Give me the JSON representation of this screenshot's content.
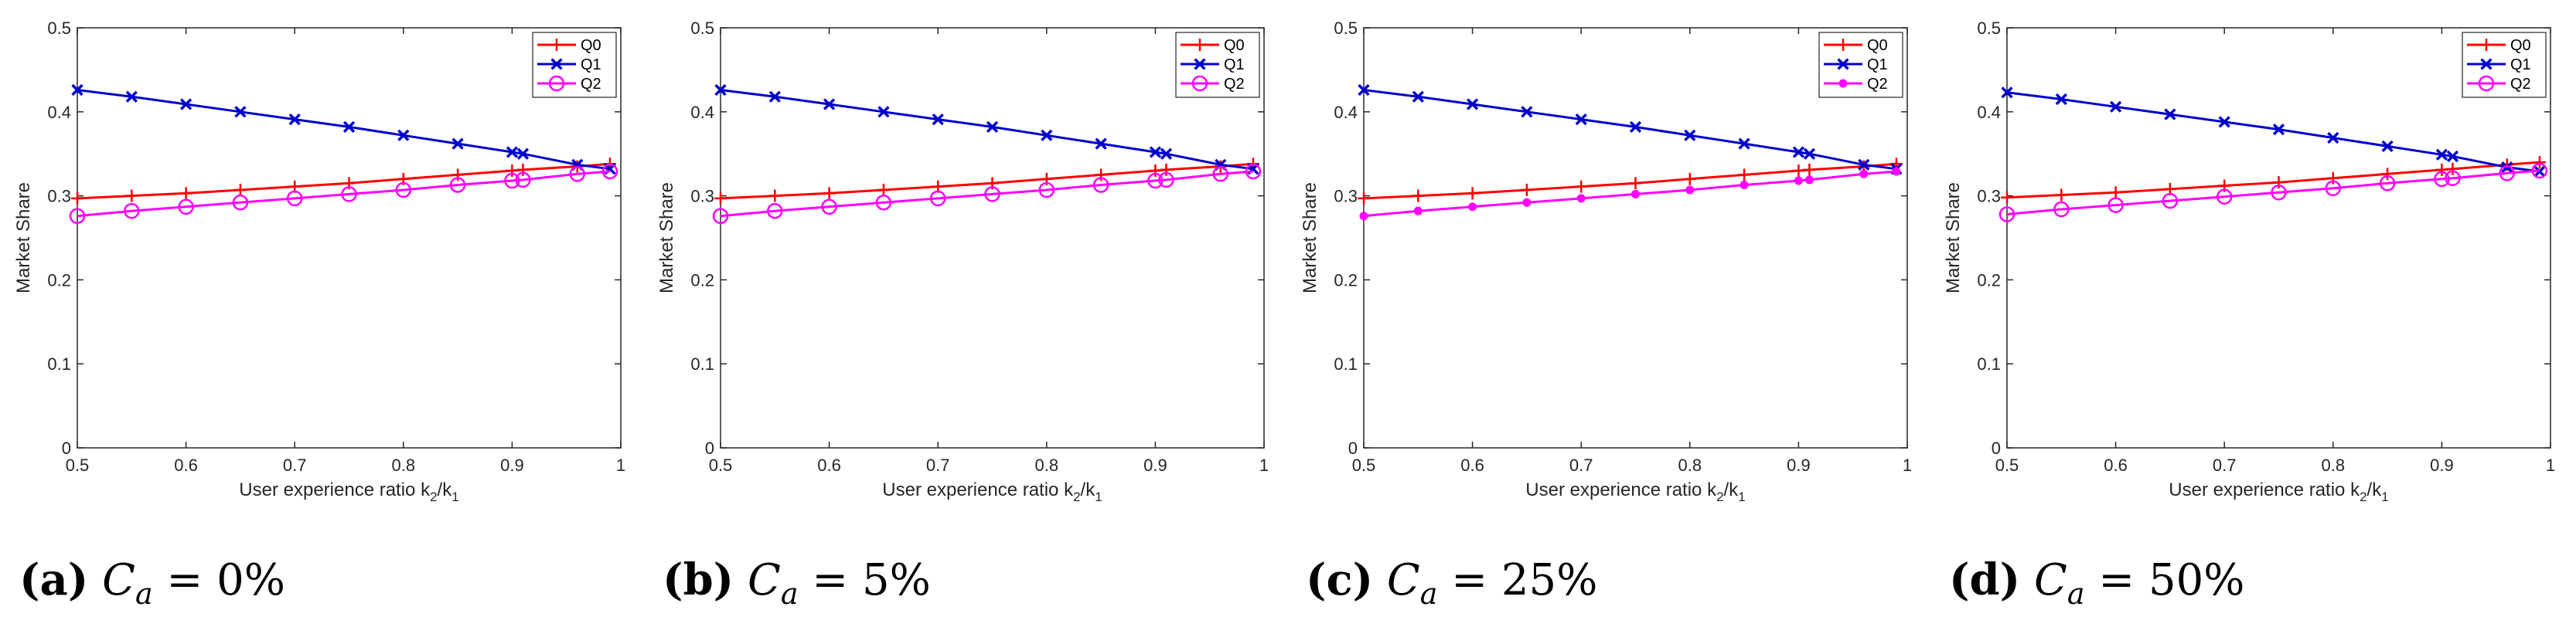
{
  "chart_data": [
    {
      "type": "line",
      "panel": "(a)",
      "caption": {
        "label": "(a)",
        "math": "C_a = 0%"
      },
      "xlabel": "User experience ratio k2/k1",
      "ylabel": "Market Share",
      "xlim": [
        0.5,
        1
      ],
      "ylim": [
        0,
        0.5
      ],
      "xticks": [
        "0.5",
        "0.6",
        "0.7",
        "0.8",
        "0.9",
        "1"
      ],
      "yticks": [
        "0",
        "0.1",
        "0.2",
        "0.3",
        "0.4",
        "0.5"
      ],
      "legend_position": "top-right",
      "x": [
        0.5,
        0.55,
        0.6,
        0.65,
        0.7,
        0.75,
        0.8,
        0.85,
        0.9,
        0.91,
        0.96,
        0.99
      ],
      "series": [
        {
          "name": "Q0",
          "color": "#ff0000",
          "marker": "plus",
          "values": [
            0.297,
            0.3,
            0.303,
            0.307,
            0.311,
            0.315,
            0.32,
            0.325,
            0.33,
            0.331,
            0.335,
            0.338
          ]
        },
        {
          "name": "Q1",
          "color": "#0000cc",
          "marker": "x",
          "values": [
            0.426,
            0.418,
            0.409,
            0.4,
            0.391,
            0.382,
            0.372,
            0.362,
            0.352,
            0.35,
            0.337,
            0.332
          ]
        },
        {
          "name": "Q2",
          "color": "#ff00ff",
          "marker": "circle",
          "values": [
            0.276,
            0.282,
            0.287,
            0.292,
            0.297,
            0.302,
            0.307,
            0.313,
            0.318,
            0.319,
            0.326,
            0.329
          ]
        }
      ]
    },
    {
      "type": "line",
      "panel": "(b)",
      "caption": {
        "label": "(b)",
        "math": "C_a = 5%"
      },
      "xlabel": "User experience ratio k2/k1",
      "ylabel": "Market Share",
      "xlim": [
        0.5,
        1
      ],
      "ylim": [
        0,
        0.5
      ],
      "xticks": [
        "0.5",
        "0.6",
        "0.7",
        "0.8",
        "0.9",
        "1"
      ],
      "yticks": [
        "0",
        "0.1",
        "0.2",
        "0.3",
        "0.4",
        "0.5"
      ],
      "legend_position": "top-right",
      "x": [
        0.5,
        0.55,
        0.6,
        0.65,
        0.7,
        0.75,
        0.8,
        0.85,
        0.9,
        0.91,
        0.96,
        0.99
      ],
      "series": [
        {
          "name": "Q0",
          "color": "#ff0000",
          "marker": "plus",
          "values": [
            0.297,
            0.3,
            0.303,
            0.307,
            0.311,
            0.315,
            0.32,
            0.325,
            0.33,
            0.331,
            0.335,
            0.338
          ]
        },
        {
          "name": "Q1",
          "color": "#0000cc",
          "marker": "x",
          "values": [
            0.426,
            0.418,
            0.409,
            0.4,
            0.391,
            0.382,
            0.372,
            0.362,
            0.352,
            0.35,
            0.337,
            0.332
          ]
        },
        {
          "name": "Q2",
          "color": "#ff00ff",
          "marker": "circle",
          "values": [
            0.276,
            0.282,
            0.287,
            0.292,
            0.297,
            0.302,
            0.307,
            0.313,
            0.318,
            0.319,
            0.326,
            0.329
          ]
        }
      ]
    },
    {
      "type": "line",
      "panel": "(c)",
      "caption": {
        "label": "(c)",
        "math": "C_a = 25%"
      },
      "xlabel": "User experience ratio k2/k1",
      "ylabel": "Market Share",
      "xlim": [
        0.5,
        1
      ],
      "ylim": [
        0,
        0.5
      ],
      "xticks": [
        "0.5",
        "0.6",
        "0.7",
        "0.8",
        "0.9",
        "1"
      ],
      "yticks": [
        "0",
        "0.1",
        "0.2",
        "0.3",
        "0.4",
        "0.5"
      ],
      "legend_position": "top-right",
      "x": [
        0.5,
        0.55,
        0.6,
        0.65,
        0.7,
        0.75,
        0.8,
        0.85,
        0.9,
        0.91,
        0.96,
        0.99
      ],
      "series": [
        {
          "name": "Q0",
          "color": "#ff0000",
          "marker": "plus",
          "values": [
            0.297,
            0.3,
            0.303,
            0.307,
            0.311,
            0.315,
            0.32,
            0.325,
            0.33,
            0.331,
            0.335,
            0.338
          ]
        },
        {
          "name": "Q1",
          "color": "#0000cc",
          "marker": "x",
          "values": [
            0.426,
            0.418,
            0.409,
            0.4,
            0.391,
            0.382,
            0.372,
            0.362,
            0.352,
            0.35,
            0.337,
            0.332
          ]
        },
        {
          "name": "Q2",
          "color": "#ff00ff",
          "marker": "dot",
          "values": [
            0.276,
            0.282,
            0.287,
            0.292,
            0.297,
            0.302,
            0.307,
            0.313,
            0.318,
            0.319,
            0.326,
            0.329
          ]
        }
      ]
    },
    {
      "type": "line",
      "panel": "(d)",
      "caption": {
        "label": "(d)",
        "math": "C_a = 50%"
      },
      "xlabel": "User experience ratio k2/k1",
      "ylabel": "Market Share",
      "xlim": [
        0.5,
        1
      ],
      "ylim": [
        0,
        0.5
      ],
      "xticks": [
        "0.5",
        "0.6",
        "0.7",
        "0.8",
        "0.9",
        "1"
      ],
      "yticks": [
        "0",
        "0.1",
        "0.2",
        "0.3",
        "0.4",
        "0.5"
      ],
      "legend_position": "top-right",
      "x": [
        0.5,
        0.55,
        0.6,
        0.65,
        0.7,
        0.75,
        0.8,
        0.85,
        0.9,
        0.91,
        0.96,
        0.99
      ],
      "series": [
        {
          "name": "Q0",
          "color": "#ff0000",
          "marker": "plus",
          "values": [
            0.298,
            0.301,
            0.304,
            0.308,
            0.312,
            0.316,
            0.321,
            0.326,
            0.331,
            0.332,
            0.337,
            0.34
          ]
        },
        {
          "name": "Q1",
          "color": "#0000cc",
          "marker": "x",
          "values": [
            0.423,
            0.415,
            0.406,
            0.397,
            0.388,
            0.379,
            0.369,
            0.359,
            0.349,
            0.347,
            0.334,
            0.329
          ]
        },
        {
          "name": "Q2",
          "color": "#ff00ff",
          "marker": "circle",
          "values": [
            0.278,
            0.284,
            0.289,
            0.294,
            0.299,
            0.304,
            0.309,
            0.315,
            0.32,
            0.321,
            0.327,
            0.33
          ]
        }
      ]
    }
  ]
}
